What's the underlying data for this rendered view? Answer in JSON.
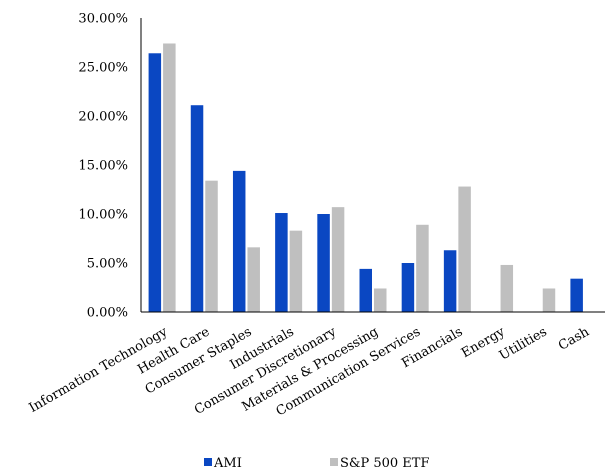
{
  "chart_data": {
    "type": "bar",
    "categories": [
      "Information Technology",
      "Health Care",
      "Consumer Staples",
      "Industrials",
      "Consumer Discretionary",
      "Materials & Processing",
      "Communication Services",
      "Financials",
      "Energy",
      "Utilities",
      "Cash"
    ],
    "series": [
      {
        "name": "AMI",
        "color": "#0a47c2",
        "values": [
          26.4,
          21.1,
          14.4,
          10.1,
          10.0,
          4.4,
          5.0,
          6.3,
          0,
          0,
          3.4
        ]
      },
      {
        "name": "S&P 500 ETF",
        "color": "#bfbfbf",
        "values": [
          27.4,
          13.4,
          6.6,
          8.3,
          10.7,
          2.4,
          8.9,
          12.8,
          4.8,
          2.4,
          0
        ]
      }
    ],
    "ylim": [
      0,
      30
    ],
    "yticks": [
      "0.00%",
      "5.00%",
      "10.00%",
      "15.00%",
      "20.00%",
      "25.00%",
      "30.00%"
    ],
    "title": "",
    "xlabel": "",
    "ylabel": "",
    "grid": false,
    "legend_position": "bottom"
  }
}
